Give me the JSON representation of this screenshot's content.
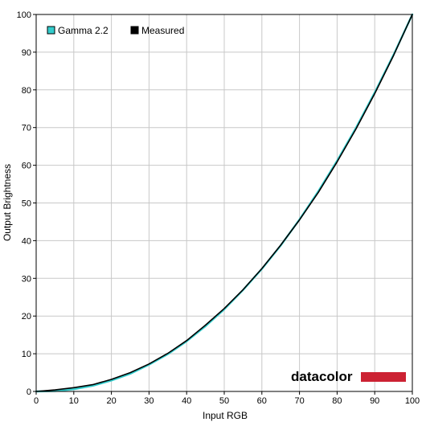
{
  "chart_data": {
    "type": "line",
    "xlabel": "Input RGB",
    "ylabel": "Output Brightness",
    "xlim": [
      0,
      100
    ],
    "ylim": [
      0,
      100
    ],
    "x_ticks": [
      "0",
      "10",
      "20",
      "30",
      "40",
      "50",
      "60",
      "70",
      "80",
      "90",
      "100"
    ],
    "y_ticks": [
      "0",
      "10",
      "20",
      "30",
      "40",
      "50",
      "60",
      "70",
      "80",
      "90",
      "100"
    ],
    "grid": true,
    "legend_position": "top-left",
    "series": [
      {
        "name": "Gamma 2.2",
        "color": "#33cccc",
        "x": [
          0,
          5,
          10,
          15,
          20,
          25,
          30,
          35,
          40,
          45,
          50,
          55,
          60,
          65,
          70,
          75,
          80,
          85,
          90,
          95,
          100
        ],
        "y": [
          0,
          0.1,
          0.6,
          1.5,
          2.9,
          4.7,
          7.1,
          9.9,
          13.3,
          17.3,
          21.8,
          26.9,
          32.5,
          38.7,
          45.6,
          53.1,
          61.2,
          69.9,
          79.3,
          89.3,
          100
        ]
      },
      {
        "name": "Measured",
        "color": "#000000",
        "x": [
          0,
          5,
          10,
          15,
          20,
          25,
          30,
          35,
          40,
          45,
          50,
          55,
          60,
          65,
          70,
          75,
          80,
          85,
          90,
          95,
          100
        ],
        "y": [
          0,
          0.4,
          1.0,
          1.8,
          3.2,
          5.0,
          7.3,
          10.1,
          13.5,
          17.6,
          22.0,
          27.0,
          32.6,
          38.8,
          45.5,
          52.8,
          60.9,
          69.6,
          79.0,
          89.1,
          100
        ]
      }
    ]
  },
  "brand": {
    "logo_text": "datacolor",
    "logo_bar_color": "#cc2233"
  }
}
